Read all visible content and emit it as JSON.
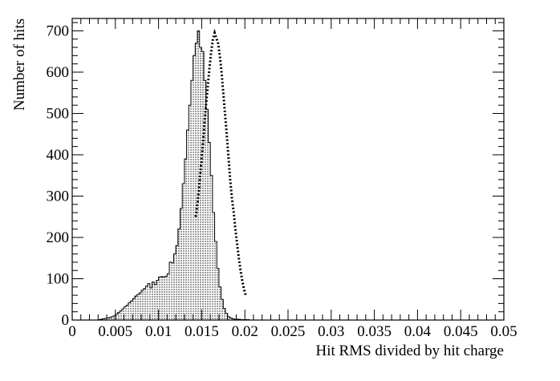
{
  "chart_data": {
    "type": "histogram",
    "title": "",
    "xlabel": "Hit RMS divided by hit charge",
    "ylabel": "Number of hits",
    "xlim": [
      0,
      0.05
    ],
    "ylim": [
      0,
      730
    ],
    "x_ticks": [
      0,
      0.005,
      0.01,
      0.015,
      0.02,
      0.025,
      0.03,
      0.035,
      0.04,
      0.045,
      0.05
    ],
    "x_tick_labels": [
      "0",
      "0.005",
      "0.01",
      "0.015",
      "0.02",
      "0.025",
      "0.03",
      "0.035",
      "0.04",
      "0.045",
      "0.05"
    ],
    "y_ticks": [
      0,
      100,
      200,
      300,
      400,
      500,
      600,
      700
    ],
    "y_tick_labels": [
      "0",
      "100",
      "200",
      "300",
      "400",
      "500",
      "600",
      "700"
    ],
    "bin_width": 0.00025,
    "bin_start": 0.003,
    "counts": [
      1,
      2,
      3,
      4,
      5,
      6,
      8,
      10,
      14,
      18,
      22,
      27,
      32,
      36,
      42,
      46,
      52,
      58,
      62,
      66,
      72,
      76,
      82,
      88,
      78,
      92,
      86,
      96,
      104,
      105,
      104,
      106,
      112,
      140,
      138,
      160,
      180,
      220,
      270,
      330,
      390,
      460,
      520,
      580,
      640,
      670,
      700,
      660,
      650,
      580,
      510,
      430,
      350,
      260,
      190,
      125,
      80,
      50,
      28,
      16,
      8,
      5,
      3,
      2,
      2,
      2,
      1,
      1,
      1,
      1
    ],
    "fit_x": [
      0.0143,
      0.0145,
      0.0147,
      0.0149,
      0.0151,
      0.0153,
      0.0155,
      0.0157,
      0.0159,
      0.0161,
      0.0163,
      0.0165,
      0.0167,
      0.0169,
      0.0171,
      0.0173,
      0.0175,
      0.0177,
      0.0179,
      0.0181,
      0.0183,
      0.0185,
      0.0187,
      0.0189,
      0.0191,
      0.0193,
      0.0195,
      0.0197,
      0.0199,
      0.0201
    ],
    "fit_y": [
      250,
      280,
      320,
      370,
      415,
      470,
      520,
      565,
      610,
      650,
      680,
      695,
      682,
      670,
      640,
      600,
      550,
      500,
      450,
      395,
      340,
      295,
      262,
      220,
      185,
      150,
      120,
      95,
      75,
      60
    ],
    "fill_pattern": "dotted",
    "fit_style": "dotted-thick"
  }
}
